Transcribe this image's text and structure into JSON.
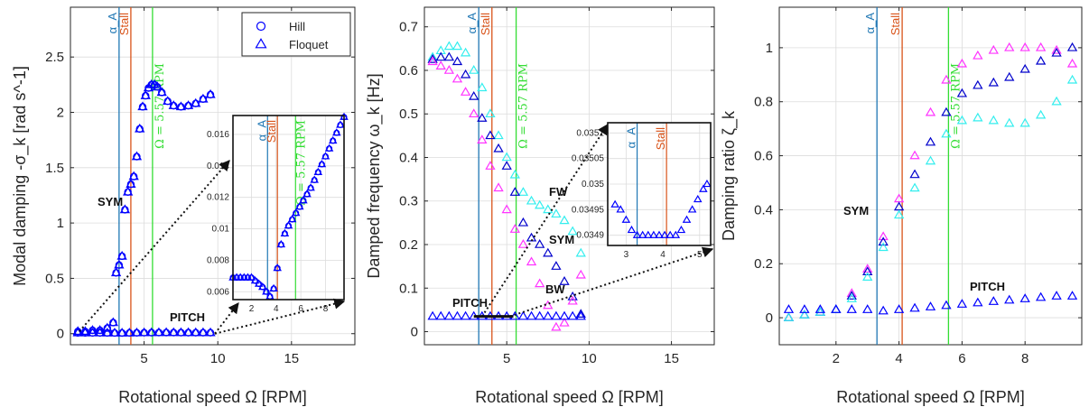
{
  "legend": {
    "entries": [
      {
        "label": "Hill",
        "marker": "circle",
        "color": "#0000ff"
      },
      {
        "label": "Floquet",
        "marker": "triangle",
        "color": "#0000ff"
      }
    ]
  },
  "vlines": [
    {
      "label": "α_A",
      "x": 3.3,
      "color": "#1f77b4"
    },
    {
      "label": "Stall",
      "x": 4.1,
      "color": "#d95319"
    },
    {
      "label": "Ω = 5.57 RPM",
      "x": 5.57,
      "color": "#33dd33"
    }
  ],
  "chart_data": [
    {
      "type": "scatter",
      "title": "",
      "xlabel": "Rotational speed Ω [RPM]",
      "ylabel": "Modal damping -σ_k [rad s^-1]",
      "xlim": [
        0,
        19.3
      ],
      "ylim": [
        -0.1,
        2.95
      ],
      "xticks": [
        5,
        10,
        15
      ],
      "yticks": [
        0,
        0.5,
        1,
        1.5,
        2,
        2.5
      ],
      "annotations": [
        "SYM",
        "PITCH"
      ],
      "series": [
        {
          "name": "SYM",
          "color": "#0000ff",
          "x": [
            0.5,
            1.0,
            1.5,
            2.0,
            2.5,
            2.9,
            3.1,
            3.3,
            3.5,
            3.7,
            3.9,
            4.1,
            4.3,
            4.5,
            4.7,
            4.9,
            5.1,
            5.3,
            5.5,
            5.7,
            5.9,
            6.2,
            6.6,
            7.0,
            7.5,
            8.0,
            8.5,
            9.0,
            9.5
          ],
          "y": [
            0.02,
            0.02,
            0.03,
            0.03,
            0.05,
            0.1,
            0.55,
            0.62,
            0.7,
            1.12,
            1.28,
            1.35,
            1.42,
            1.6,
            1.85,
            2.05,
            2.15,
            2.22,
            2.25,
            2.25,
            2.23,
            2.18,
            2.1,
            2.06,
            2.05,
            2.06,
            2.08,
            2.12,
            2.16
          ]
        },
        {
          "name": "PITCH",
          "color": "#0000ff",
          "x": [
            0.5,
            1.0,
            1.5,
            2.0,
            2.5,
            3.0,
            3.5,
            4.0,
            4.5,
            5.0,
            5.5,
            6.0,
            6.5,
            7.0,
            7.5,
            8.0,
            8.5,
            9.0,
            9.5
          ],
          "y": [
            0.007,
            0.007,
            0.007,
            0.007,
            0.0065,
            0.0062,
            0.0058,
            0.0065,
            0.0075,
            0.0085,
            0.009,
            0.0095,
            0.0098,
            0.0095,
            0.0092,
            0.009,
            0.0088,
            0.0087,
            0.0086
          ]
        }
      ],
      "inset": {
        "xlim": [
          0.5,
          9.5
        ],
        "ylim": [
          0.0055,
          0.0172
        ],
        "xticks": [
          2,
          4,
          6,
          8
        ],
        "yticks": [
          0.006,
          0.008,
          0.01,
          0.012,
          0.014,
          0.016
        ],
        "ytick_labels": [
          "0.006",
          "0.008",
          "0.01",
          "0.012",
          "0.014",
          "0.016"
        ],
        "x": [
          0.5,
          0.8,
          1.1,
          1.4,
          1.7,
          2.0,
          2.3,
          2.6,
          2.9,
          3.2,
          3.5,
          3.8,
          4.1,
          4.4,
          4.7,
          5.0,
          5.3,
          5.6,
          5.9,
          6.2,
          6.5,
          6.8,
          7.1,
          7.4,
          7.7,
          8.0,
          8.3,
          8.6,
          8.9,
          9.2,
          9.5
        ],
        "y": [
          0.0069,
          0.0069,
          0.0069,
          0.0069,
          0.0069,
          0.0069,
          0.0067,
          0.0065,
          0.0063,
          0.006,
          0.0057,
          0.0062,
          0.0075,
          0.009,
          0.0097,
          0.0102,
          0.0106,
          0.011,
          0.0114,
          0.0118,
          0.0122,
          0.0126,
          0.0131,
          0.0136,
          0.0141,
          0.0146,
          0.0151,
          0.0156,
          0.0161,
          0.0166,
          0.0171
        ]
      }
    },
    {
      "type": "scatter",
      "title": "",
      "xlabel": "Rotational speed Ω [RPM]",
      "ylabel": "Damped frequency ω_k [Hz]",
      "xlim": [
        0,
        17.6
      ],
      "ylim": [
        -0.03,
        0.745
      ],
      "xticks": [
        5,
        10,
        15
      ],
      "yticks": [
        0,
        0.1,
        0.2,
        0.3,
        0.4,
        0.5,
        0.6,
        0.7
      ],
      "annotations": [
        "FW",
        "SYM",
        "BW",
        "PITCH"
      ],
      "series": [
        {
          "name": "FW",
          "color": "#33eeee",
          "x": [
            0.5,
            1.0,
            1.5,
            2.0,
            2.5,
            3.0,
            3.5,
            4.0,
            4.5,
            5.0,
            5.5,
            6.0,
            6.5,
            7.0,
            7.5,
            8.0,
            8.5,
            9.0,
            9.5
          ],
          "y": [
            0.63,
            0.645,
            0.655,
            0.655,
            0.64,
            0.6,
            0.56,
            0.5,
            0.45,
            0.4,
            0.36,
            0.32,
            0.3,
            0.29,
            0.28,
            0.27,
            0.255,
            0.23,
            0.18
          ]
        },
        {
          "name": "SYM",
          "color": "#0000cc",
          "x": [
            0.5,
            1.0,
            1.5,
            2.0,
            2.5,
            3.0,
            3.5,
            4.0,
            4.5,
            5.0,
            5.5,
            6.0,
            6.5,
            7.0,
            7.5,
            8.0,
            8.5,
            9.0,
            9.5
          ],
          "y": [
            0.625,
            0.63,
            0.63,
            0.62,
            0.59,
            0.54,
            0.49,
            0.45,
            0.42,
            0.38,
            0.32,
            0.25,
            0.215,
            0.2,
            0.18,
            0.15,
            0.115,
            0.08,
            0.04
          ]
        },
        {
          "name": "BW",
          "color": "#ff33ff",
          "x": [
            0.5,
            1.0,
            1.5,
            2.0,
            2.5,
            3.0,
            3.5,
            4.0,
            4.5,
            5.0,
            5.5,
            6.0,
            6.5,
            7.0,
            7.5,
            8.0,
            8.5,
            9.0,
            9.5
          ],
          "y": [
            0.62,
            0.61,
            0.6,
            0.58,
            0.55,
            0.5,
            0.44,
            0.38,
            0.33,
            0.28,
            0.235,
            0.2,
            0.16,
            0.11,
            0.06,
            0.01,
            0.02,
            0.07,
            0.13
          ]
        },
        {
          "name": "PITCH",
          "color": "#0000ff",
          "x": [
            0.5,
            1.0,
            1.5,
            2.0,
            2.5,
            3.0,
            3.5,
            4.0,
            4.5,
            5.0,
            5.5,
            6.0,
            6.5,
            7.0,
            7.5,
            8.0,
            8.5,
            9.0,
            9.5
          ],
          "y": [
            0.035,
            0.035,
            0.035,
            0.035,
            0.035,
            0.035,
            0.035,
            0.035,
            0.035,
            0.035,
            0.035,
            0.035,
            0.035,
            0.035,
            0.035,
            0.035,
            0.035,
            0.035,
            0.035
          ]
        }
      ],
      "inset": {
        "xlim": [
          2.5,
          5.3
        ],
        "ylim": [
          0.03488,
          0.03512
        ],
        "xticks": [
          3,
          4,
          5
        ],
        "yticks": [
          0.0349,
          0.03495,
          0.035,
          0.03505,
          0.0351
        ],
        "ytick_labels": [
          "0.0349",
          "0.03495",
          "0.035",
          "0.03505",
          "0.0351"
        ],
        "x": [
          2.7,
          2.85,
          3.0,
          3.15,
          3.3,
          3.45,
          3.6,
          3.75,
          3.9,
          4.05,
          4.2,
          4.35,
          4.5,
          4.65,
          4.8,
          4.95,
          5.1,
          5.2
        ],
        "y": [
          0.03496,
          0.03495,
          0.03493,
          0.03491,
          0.0349,
          0.0349,
          0.0349,
          0.0349,
          0.0349,
          0.0349,
          0.0349,
          0.0349,
          0.03491,
          0.03493,
          0.03495,
          0.03497,
          0.03499,
          0.035
        ]
      }
    },
    {
      "type": "scatter",
      "title": "",
      "xlabel": "Rotational speed Ω [RPM]",
      "ylabel": "Damping ratio ζ_k",
      "xlim": [
        0.2,
        9.8
      ],
      "ylim": [
        -0.1,
        1.15
      ],
      "xticks": [
        2,
        4,
        6,
        8
      ],
      "yticks": [
        0,
        0.2,
        0.4,
        0.6,
        0.8,
        1
      ],
      "annotations": [
        "SYM",
        "PITCH"
      ],
      "series": [
        {
          "name": "BW",
          "color": "#ff33ff",
          "x": [
            0.5,
            1.0,
            1.5,
            2.0,
            2.5,
            3.0,
            3.5,
            4.0,
            4.5,
            5.0,
            5.5,
            6.0,
            6.5,
            7.0,
            7.5,
            8.0,
            8.5,
            9.0,
            9.5
          ],
          "y": [
            0.0,
            0.01,
            0.02,
            0.03,
            0.09,
            0.18,
            0.3,
            0.44,
            0.6,
            0.76,
            0.88,
            0.94,
            0.97,
            0.99,
            1.0,
            1.0,
            1.0,
            0.99,
            0.94
          ]
        },
        {
          "name": "SYM",
          "color": "#0000cc",
          "x": [
            0.5,
            1.0,
            1.5,
            2.0,
            2.5,
            3.0,
            3.5,
            4.0,
            4.5,
            5.0,
            5.5,
            6.0,
            6.5,
            7.0,
            7.5,
            8.0,
            8.5,
            9.0,
            9.5
          ],
          "y": [
            0.0,
            0.01,
            0.02,
            0.03,
            0.08,
            0.17,
            0.28,
            0.41,
            0.53,
            0.65,
            0.76,
            0.83,
            0.86,
            0.87,
            0.89,
            0.92,
            0.95,
            0.98,
            1.0
          ]
        },
        {
          "name": "FW",
          "color": "#33eeee",
          "x": [
            0.5,
            1.0,
            1.5,
            2.0,
            2.5,
            3.0,
            3.5,
            4.0,
            4.5,
            5.0,
            5.5,
            6.0,
            6.5,
            7.0,
            7.5,
            8.0,
            8.5,
            9.0,
            9.5
          ],
          "y": [
            0.0,
            0.01,
            0.02,
            0.03,
            0.07,
            0.15,
            0.26,
            0.38,
            0.48,
            0.58,
            0.68,
            0.73,
            0.74,
            0.73,
            0.72,
            0.72,
            0.75,
            0.8,
            0.88
          ]
        },
        {
          "name": "PITCH",
          "color": "#0000ff",
          "x": [
            0.5,
            1.0,
            1.5,
            2.0,
            2.5,
            3.0,
            3.5,
            4.0,
            4.5,
            5.0,
            5.5,
            6.0,
            6.5,
            7.0,
            7.5,
            8.0,
            8.5,
            9.0,
            9.5
          ],
          "y": [
            0.03,
            0.03,
            0.03,
            0.03,
            0.03,
            0.03,
            0.025,
            0.03,
            0.035,
            0.04,
            0.045,
            0.05,
            0.055,
            0.06,
            0.065,
            0.07,
            0.075,
            0.08,
            0.08
          ]
        }
      ]
    }
  ]
}
